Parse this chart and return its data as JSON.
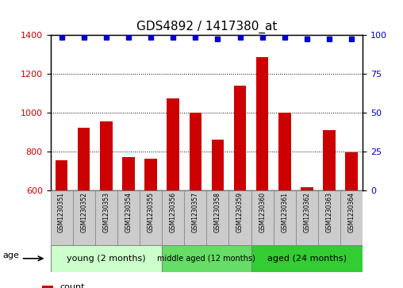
{
  "title": "GDS4892 / 1417380_at",
  "samples": [
    "GSM1230351",
    "GSM1230352",
    "GSM1230353",
    "GSM1230354",
    "GSM1230355",
    "GSM1230356",
    "GSM1230357",
    "GSM1230358",
    "GSM1230359",
    "GSM1230360",
    "GSM1230361",
    "GSM1230362",
    "GSM1230363",
    "GSM1230364"
  ],
  "counts": [
    755,
    920,
    955,
    768,
    762,
    1072,
    997,
    858,
    1138,
    1285,
    1000,
    615,
    907,
    795
  ],
  "percentiles": [
    98,
    98,
    98,
    98,
    98,
    98,
    98,
    97,
    98,
    98,
    98,
    97,
    97,
    97
  ],
  "ylim_left": [
    600,
    1400
  ],
  "ylim_right": [
    0,
    100
  ],
  "yticks_left": [
    600,
    800,
    1000,
    1200,
    1400
  ],
  "yticks_right": [
    0,
    25,
    50,
    75,
    100
  ],
  "groups": [
    {
      "label": "young (2 months)",
      "start": 0,
      "end": 5,
      "color": "#CCFFCC"
    },
    {
      "label": "middle aged (12 months)",
      "start": 5,
      "end": 9,
      "color": "#66DD66"
    },
    {
      "label": "aged (24 months)",
      "start": 9,
      "end": 14,
      "color": "#33CC33"
    }
  ],
  "bar_color": "#CC0000",
  "dot_color": "#0000CC",
  "grid_color": "#000000",
  "sample_box_color": "#CCCCCC",
  "legend_count_color": "#CC0000",
  "legend_percentile_color": "#0000CC",
  "xlabel_age": "age",
  "title_fontsize": 11,
  "tick_fontsize": 8,
  "sample_fontsize": 5.5,
  "legend_fontsize": 8,
  "group_fontsize": 8
}
